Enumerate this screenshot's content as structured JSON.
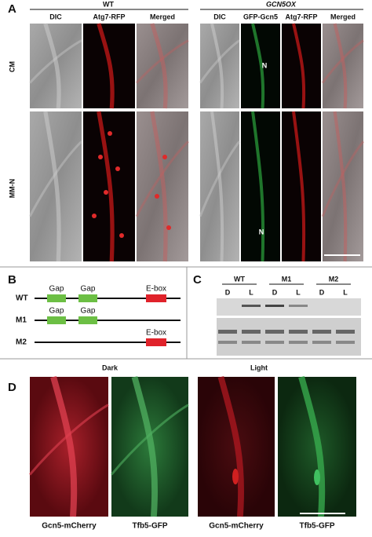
{
  "panel_a": {
    "label": "A",
    "groups": [
      "WT",
      "GCN5OX"
    ],
    "columns": [
      "DIC",
      "Atg7-RFP",
      "Merged",
      "DIC",
      "GFP-Gcn5",
      "Atg7-RFP",
      "Merged"
    ],
    "rows": [
      "CM",
      "MM-N"
    ],
    "annotations": [
      "N",
      "N"
    ]
  },
  "panel_b": {
    "label": "B",
    "constructs": [
      {
        "name": "WT",
        "elements": [
          "Gap",
          "Gap",
          "E-box"
        ]
      },
      {
        "name": "M1",
        "elements": [
          "Gap",
          "Gap"
        ]
      },
      {
        "name": "M2",
        "elements": [
          "E-box"
        ]
      }
    ]
  },
  "panel_c": {
    "label": "C",
    "groups": [
      "WT",
      "M1",
      "M2"
    ],
    "lanes": [
      "D",
      "L",
      "D",
      "L",
      "D",
      "L"
    ]
  },
  "panel_d": {
    "label": "D",
    "conditions": [
      "Dark",
      "Light"
    ],
    "captions": [
      "Gcn5-mCherry",
      "Tfb5-GFP",
      "Gcn5-mCherry",
      "Tfb5-GFP"
    ]
  }
}
